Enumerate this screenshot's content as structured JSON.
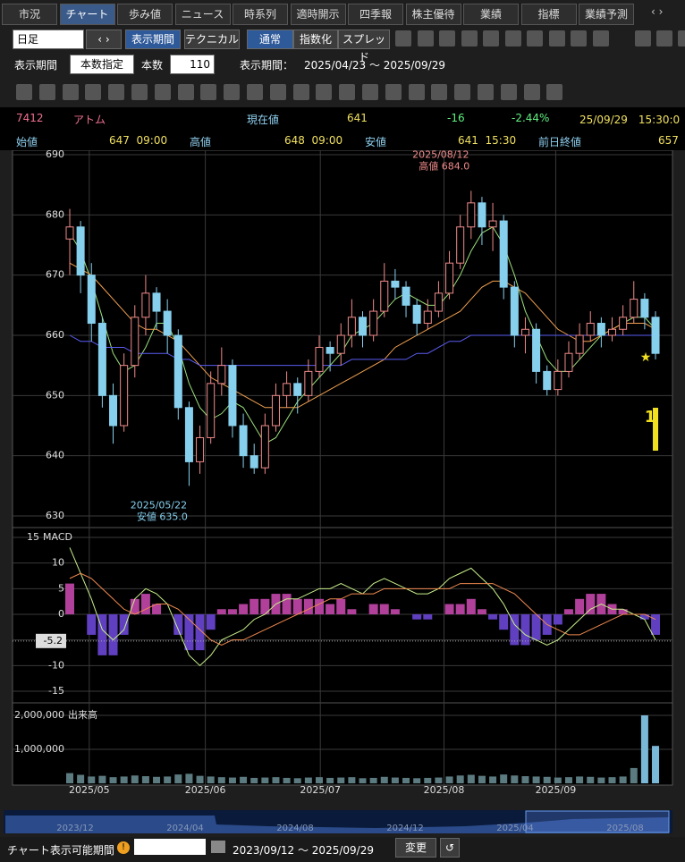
{
  "tabs": [
    "市況",
    "チャート",
    "歩み値",
    "ニュース",
    "時系列",
    "適時開示",
    "四季報",
    "株主優待",
    "業績",
    "指標",
    "業績予測"
  ],
  "active_tab": 1,
  "toolbar": {
    "period": "日足",
    "buttons": [
      "表示期間",
      "テクニカル"
    ],
    "modes": [
      "通常",
      "指数化",
      "スプレッド"
    ]
  },
  "range_row": {
    "label": "表示期間",
    "mode": "本数指定",
    "count_label": "本数",
    "count": 110,
    "period_label": "表示期間：",
    "period": "2025/04/23 ～ 2025/09/29"
  },
  "quote": {
    "code": "7412",
    "name": "アトム",
    "price_label": "現在値",
    "price": 641,
    "change": -16,
    "change_pct": "-2.44%",
    "datetime": "25/09/29　15:30:0"
  },
  "ohlc": [
    {
      "label": "始値",
      "value": "647  09:00"
    },
    {
      "label": "高値",
      "value": "648  09:00"
    },
    {
      "label": "安値",
      "value": "641  15:30"
    },
    {
      "label": "前日終値",
      "value": "657"
    }
  ],
  "chart_data": [
    {
      "type": "candlestick",
      "ylim": [
        630,
        690
      ],
      "yticks": [
        630,
        640,
        650,
        660,
        670,
        680,
        690
      ],
      "xticks": [
        {
          "value": 1.8,
          "label": "2025/05"
        },
        {
          "value": 12.5,
          "label": "2025/06"
        },
        {
          "value": 23.1,
          "label": "2025/07"
        },
        {
          "value": 34.5,
          "label": "2025/08"
        },
        {
          "value": 44.8,
          "label": "2025/09"
        }
      ],
      "up_color": "#f08a8a",
      "down_color": "#86d0ee",
      "marker": "1",
      "annotations": [
        {
          "index": 37,
          "date": "2025/08/12",
          "text": "高値 684.0"
        },
        {
          "index": 11,
          "date": "2025/05/22",
          "text": "安値 635.0"
        }
      ],
      "candles": [
        [
          676,
          681,
          670,
          678
        ],
        [
          678,
          679,
          667,
          670
        ],
        [
          670,
          672,
          659,
          662
        ],
        [
          662,
          663,
          648,
          650
        ],
        [
          650,
          652,
          642,
          645
        ],
        [
          645,
          657,
          644,
          655
        ],
        [
          655,
          665,
          653,
          663
        ],
        [
          663,
          670,
          660,
          667
        ],
        [
          667,
          668,
          661,
          664
        ],
        [
          664,
          666,
          657,
          660
        ],
        [
          660,
          661,
          646,
          648
        ],
        [
          648,
          649,
          635,
          639
        ],
        [
          639,
          645,
          637,
          643
        ],
        [
          643,
          654,
          642,
          652
        ],
        [
          652,
          658,
          650,
          655
        ],
        [
          655,
          656,
          643,
          645
        ],
        [
          645,
          647,
          638,
          640
        ],
        [
          640,
          642,
          637,
          638
        ],
        [
          638,
          647,
          637,
          645
        ],
        [
          645,
          652,
          644,
          650
        ],
        [
          650,
          654,
          648,
          652
        ],
        [
          652,
          653,
          647,
          650
        ],
        [
          650,
          656,
          649,
          654
        ],
        [
          654,
          660,
          653,
          658
        ],
        [
          658,
          659,
          654,
          657
        ],
        [
          657,
          662,
          655,
          660
        ],
        [
          660,
          666,
          658,
          663
        ],
        [
          663,
          664,
          658,
          660
        ],
        [
          660,
          666,
          659,
          664
        ],
        [
          664,
          672,
          663,
          669
        ],
        [
          669,
          671,
          666,
          668
        ],
        [
          668,
          669,
          663,
          665
        ],
        [
          665,
          666,
          660,
          662
        ],
        [
          662,
          666,
          661,
          664
        ],
        [
          664,
          669,
          663,
          667
        ],
        [
          667,
          674,
          666,
          672
        ],
        [
          672,
          680,
          671,
          678
        ],
        [
          678,
          684,
          676,
          682
        ],
        [
          682,
          683,
          675,
          678
        ],
        [
          678,
          682,
          674,
          679
        ],
        [
          679,
          680,
          666,
          668
        ],
        [
          668,
          669,
          658,
          660
        ],
        [
          660,
          663,
          657,
          661
        ],
        [
          661,
          662,
          652,
          654
        ],
        [
          654,
          655,
          650,
          651
        ],
        [
          651,
          656,
          650,
          654
        ],
        [
          654,
          659,
          653,
          657
        ],
        [
          657,
          662,
          656,
          660
        ],
        [
          660,
          664,
          659,
          662
        ],
        [
          662,
          663,
          658,
          660
        ],
        [
          660,
          663,
          659,
          661
        ],
        [
          661,
          665,
          660,
          663
        ],
        [
          663,
          669,
          662,
          666
        ],
        [
          666,
          667,
          661,
          663
        ],
        [
          663,
          664,
          656,
          657
        ]
      ],
      "series": [
        {
          "color": "#9be07a",
          "values": [
            677,
            674,
            669,
            663,
            657,
            654,
            655,
            658,
            662,
            662,
            658,
            652,
            648,
            646,
            647,
            649,
            648,
            645,
            642,
            643,
            646,
            649,
            651,
            653,
            655,
            657,
            660,
            661,
            662,
            664,
            666,
            667,
            666,
            665,
            665,
            667,
            670,
            674,
            677,
            678,
            675,
            670,
            664,
            660,
            656,
            654,
            654,
            656,
            658,
            660,
            661,
            662,
            663,
            663,
            661
          ]
        },
        {
          "color": "#f0a050",
          "values": [
            672,
            671,
            670,
            668,
            666,
            664,
            662,
            661,
            661,
            660,
            659,
            657,
            655,
            653,
            652,
            651,
            650,
            649,
            648,
            648,
            648,
            648,
            649,
            650,
            651,
            652,
            653,
            654,
            655,
            656,
            658,
            659,
            660,
            661,
            662,
            663,
            664,
            666,
            668,
            669,
            669,
            668,
            667,
            665,
            663,
            661,
            660,
            659,
            659,
            660,
            661,
            662,
            662,
            662,
            661
          ]
        },
        {
          "color": "#5a5cf0",
          "values": [
            660,
            659,
            659,
            658,
            658,
            658,
            657,
            657,
            657,
            657,
            656,
            656,
            655,
            655,
            655,
            655,
            655,
            655,
            655,
            655,
            655,
            655,
            655,
            655,
            655,
            655,
            656,
            656,
            656,
            656,
            656,
            656,
            657,
            657,
            658,
            659,
            659,
            660,
            660,
            660,
            660,
            660,
            660,
            660,
            660,
            660,
            660,
            660,
            660,
            660,
            660,
            660,
            660,
            660,
            660
          ]
        }
      ]
    },
    {
      "type": "macd",
      "title": "MACD",
      "ylim": [
        -15,
        15
      ],
      "yticks": [
        -15,
        -10,
        -5,
        0,
        5,
        10,
        15
      ],
      "last_value": -5.2,
      "hist_pos_color": "#b0409a",
      "hist_neg_color": "#6040c0",
      "series": [
        {
          "color": "#c8f08a",
          "values": [
            13,
            8,
            3,
            -3,
            -5,
            -3,
            3,
            5,
            4,
            2,
            -3,
            -8,
            -10,
            -8,
            -5,
            -4,
            -3,
            -1,
            0,
            2,
            3,
            3,
            4,
            5,
            5,
            6,
            5,
            4,
            6,
            7,
            6,
            5,
            4,
            4,
            5,
            7,
            8,
            9,
            7,
            5,
            2,
            -2,
            -4,
            -5,
            -6,
            -5,
            -3,
            -1,
            1,
            2,
            1,
            1,
            0,
            -1,
            -5
          ]
        },
        {
          "color": "#f08a50",
          "values": [
            7,
            8,
            7,
            5,
            3,
            1,
            0,
            1,
            2,
            2,
            1,
            -1,
            -3,
            -5,
            -6,
            -5,
            -5,
            -4,
            -3,
            -2,
            -1,
            0,
            1,
            2,
            3,
            3,
            4,
            4,
            4,
            5,
            5,
            5,
            5,
            5,
            5,
            5,
            6,
            6,
            6,
            6,
            5,
            4,
            2,
            0,
            -2,
            -3,
            -4,
            -4,
            -3,
            -2,
            -1,
            0,
            0,
            0,
            -1
          ]
        }
      ],
      "histogram": [
        6,
        0,
        -4,
        -8,
        -8,
        -4,
        3,
        4,
        2,
        0,
        -4,
        -7,
        -7,
        -3,
        1,
        1,
        2,
        3,
        3,
        4,
        4,
        3,
        3,
        3,
        2,
        3,
        1,
        0,
        2,
        2,
        1,
        0,
        -1,
        -1,
        0,
        2,
        2,
        3,
        1,
        -1,
        -3,
        -6,
        -6,
        -5,
        -4,
        -2,
        1,
        3,
        4,
        4,
        2,
        1,
        0,
        -1,
        -4
      ]
    },
    {
      "type": "volume",
      "title": "出来高",
      "ylim": [
        0,
        2000000
      ],
      "yticks": [
        {
          "value": 1000000,
          "label": "1,000,000"
        },
        {
          "value": 2000000,
          "label": "2,000,000"
        }
      ],
      "color": "#5b7b80",
      "last_color": "#7ab8d8",
      "values": [
        300000,
        250000,
        200000,
        220000,
        180000,
        200000,
        230000,
        210000,
        190000,
        200000,
        260000,
        280000,
        220000,
        200000,
        180000,
        170000,
        190000,
        160000,
        170000,
        180000,
        160000,
        150000,
        170000,
        180000,
        160000,
        170000,
        180000,
        150000,
        160000,
        190000,
        170000,
        160000,
        150000,
        160000,
        170000,
        200000,
        230000,
        250000,
        220000,
        200000,
        260000,
        230000,
        210000,
        200000,
        190000,
        170000,
        180000,
        200000,
        190000,
        170000,
        180000,
        200000,
        450000,
        2000000,
        1100000
      ]
    }
  ],
  "navigator": [
    "2023/12",
    "2024/04",
    "2024/08",
    "2024/12",
    "2025/04",
    "2025/08"
  ],
  "footer": {
    "label": "チャート表示可能期間",
    "period": "2023/09/12 ～ 2025/09/29",
    "button": "変更"
  }
}
